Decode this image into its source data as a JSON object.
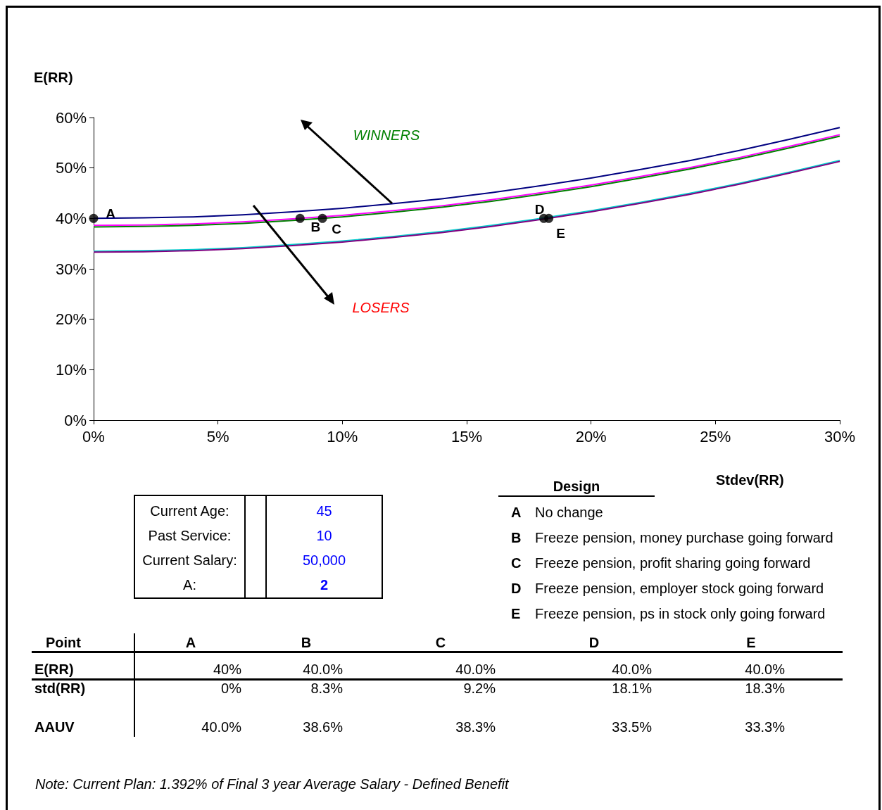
{
  "chart_data": [
    {
      "type": "line",
      "xlabel": "Stdev(RR)",
      "ylabel": "E(RR)",
      "x": [
        0,
        2,
        4,
        6,
        8,
        10,
        12,
        14,
        16,
        18,
        20,
        22,
        24,
        26,
        28,
        30
      ],
      "xlim": [
        0,
        30
      ],
      "xticks": [
        {
          "value": 0,
          "label": "0%"
        },
        {
          "value": 5,
          "label": "5%"
        },
        {
          "value": 10,
          "label": "10%"
        },
        {
          "value": 15,
          "label": "15%"
        },
        {
          "value": 20,
          "label": "20%"
        },
        {
          "value": 25,
          "label": "25%"
        },
        {
          "value": 30,
          "label": "30%"
        }
      ],
      "ylim": [
        0,
        60
      ],
      "yticks": [
        {
          "value": 0,
          "label": "0%"
        },
        {
          "value": 10,
          "label": "10%"
        },
        {
          "value": 20,
          "label": "20%"
        },
        {
          "value": 30,
          "label": "30%"
        },
        {
          "value": 40,
          "label": "40%"
        },
        {
          "value": 50,
          "label": "50%"
        },
        {
          "value": 60,
          "label": "60%"
        }
      ],
      "grid": false,
      "marker": "none",
      "series": [
        {
          "color": "#000080",
          "values": [
            40,
            40.1,
            40.3,
            40.7,
            41.3,
            42,
            42.9,
            43.9,
            45.1,
            46.5,
            48,
            49.7,
            51.5,
            53.5,
            55.7,
            58
          ]
        },
        {
          "color": "#ff00ff",
          "values": [
            38.6,
            38.7,
            38.9,
            39.3,
            39.9,
            40.6,
            41.5,
            42.5,
            43.7,
            45.1,
            46.6,
            48.3,
            50.1,
            52.1,
            54.3,
            56.6
          ]
        },
        {
          "color": "#008000",
          "values": [
            38.3,
            38.4,
            38.6,
            39,
            39.6,
            40.3,
            41.2,
            42.2,
            43.4,
            44.8,
            46.3,
            48,
            49.8,
            51.8,
            54,
            56.3
          ]
        },
        {
          "color": "#00cccc",
          "values": [
            33.5,
            33.6,
            33.8,
            34.2,
            34.8,
            35.5,
            36.4,
            37.4,
            38.6,
            40,
            41.5,
            43.2,
            45,
            47,
            49.2,
            51.5
          ]
        },
        {
          "color": "#800080",
          "values": [
            33.3,
            33.4,
            33.6,
            34,
            34.6,
            35.3,
            36.2,
            37.2,
            38.4,
            39.8,
            41.3,
            43,
            44.8,
            46.8,
            49,
            51.3
          ]
        },
        {
          "type": "scatter",
          "color": "#000000",
          "marker": "circle",
          "x": [
            0,
            8.3,
            9.2,
            18.1,
            18.3
          ],
          "values": [
            40,
            40,
            40,
            40,
            40
          ]
        }
      ],
      "annotations": [
        "A",
        "B",
        "C",
        "D",
        "E",
        "WINNERS",
        "LOSERS"
      ]
    },
    {
      "type": "other",
      "annotations": [
        "Current Age:",
        "45",
        "Past Service:",
        "10",
        "Current Salary:",
        "50,000",
        "A:",
        "2"
      ]
    },
    {
      "type": "other",
      "title": "Design",
      "categories": [
        "A",
        "B",
        "C",
        "D",
        "E"
      ],
      "annotations": [
        "No change",
        "Freeze pension, money purchase going forward",
        "Freeze pension, profit sharing going forward",
        "Freeze pension, employer stock going forward",
        "Freeze pension, ps in stock only going forward"
      ]
    },
    {
      "type": "other",
      "xlabel": "Point",
      "categories": [
        "A",
        "B",
        "C",
        "D",
        "E"
      ],
      "series": [
        {
          "name": "E(RR)",
          "values": [
            40,
            40,
            40,
            40,
            40
          ],
          "value_labels": [
            "40%",
            "40.0%",
            "40.0%",
            "40.0%",
            "40.0%"
          ]
        },
        {
          "name": "std(RR)",
          "values": [
            0,
            8.3,
            9.2,
            18.1,
            18.3
          ],
          "value_labels": [
            "0%",
            "8.3%",
            "9.2%",
            "18.1%",
            "18.3%"
          ]
        },
        {
          "name": "AAUV",
          "values": [
            40,
            38.6,
            38.3,
            33.5,
            33.3
          ],
          "value_labels": [
            "40.0%",
            "38.6%",
            "38.3%",
            "33.5%",
            "33.3%"
          ]
        }
      ],
      "annotations": [
        "Note: Current Plan: 1.392% of Final 3 year Average Salary - Defined Benefit"
      ]
    }
  ]
}
